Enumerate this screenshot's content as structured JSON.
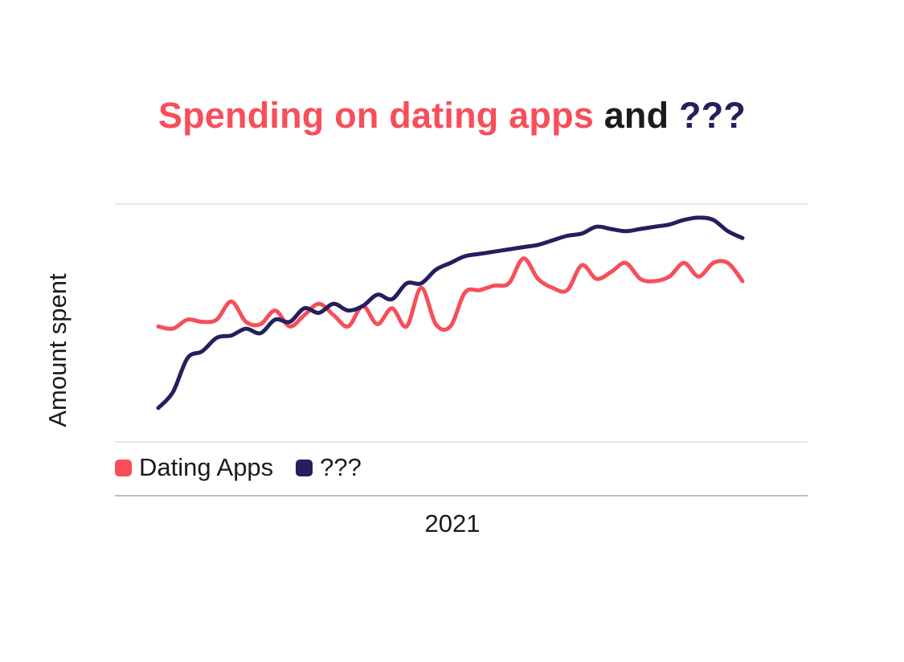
{
  "title": {
    "part1": "Spending on dating apps",
    "part2": "and",
    "part3": "???"
  },
  "colors": {
    "dating": "#f74e5a",
    "mystery": "#241f5e",
    "gridline": "#cccccc",
    "axis": "#999999",
    "text": "#1b1b1b"
  },
  "chart_data": {
    "type": "line",
    "title": "Spending on dating apps and ???",
    "xlabel": "",
    "ylabel": "Amount spent",
    "x_tick_labels": [
      "2021"
    ],
    "grid": true,
    "legend_position": "bottom-left",
    "ylim": [
      0,
      100
    ],
    "x_range": [
      0,
      40
    ],
    "series": [
      {
        "name": "Dating Apps",
        "color": "#f74e5a",
        "x": [
          0,
          1,
          2,
          3,
          4,
          5,
          6,
          7,
          8,
          9,
          10,
          11,
          12,
          13,
          14,
          15,
          16,
          17,
          18,
          19,
          20,
          21,
          22,
          23,
          24,
          25,
          26,
          27,
          28,
          29,
          30,
          31,
          32,
          33,
          34,
          35,
          36,
          37,
          38,
          39,
          40
        ],
        "values": [
          46,
          45,
          49,
          48,
          49,
          57,
          48,
          47,
          53,
          46,
          51,
          56,
          51,
          46,
          55,
          47,
          54,
          46,
          63,
          47,
          46,
          61,
          62,
          64,
          65,
          76,
          67,
          63,
          62,
          73,
          67,
          70,
          74,
          67,
          66,
          68,
          74,
          68,
          74,
          74,
          66
        ]
      },
      {
        "name": "???",
        "color": "#241f5e",
        "x": [
          0,
          1,
          2,
          3,
          4,
          5,
          6,
          7,
          8,
          9,
          10,
          11,
          12,
          13,
          14,
          15,
          16,
          17,
          18,
          19,
          20,
          21,
          22,
          23,
          24,
          25,
          26,
          27,
          28,
          29,
          30,
          31,
          32,
          33,
          34,
          35,
          36,
          37,
          38,
          39,
          40
        ],
        "values": [
          10,
          17,
          32,
          35,
          41,
          42,
          45,
          43,
          49,
          48,
          54,
          52,
          56,
          53,
          55,
          60,
          58,
          65,
          65,
          71,
          74,
          77,
          78,
          79,
          80,
          81,
          82,
          84,
          86,
          87,
          90,
          89,
          88,
          89,
          90,
          91,
          93,
          94,
          93,
          88,
          85
        ]
      }
    ]
  }
}
